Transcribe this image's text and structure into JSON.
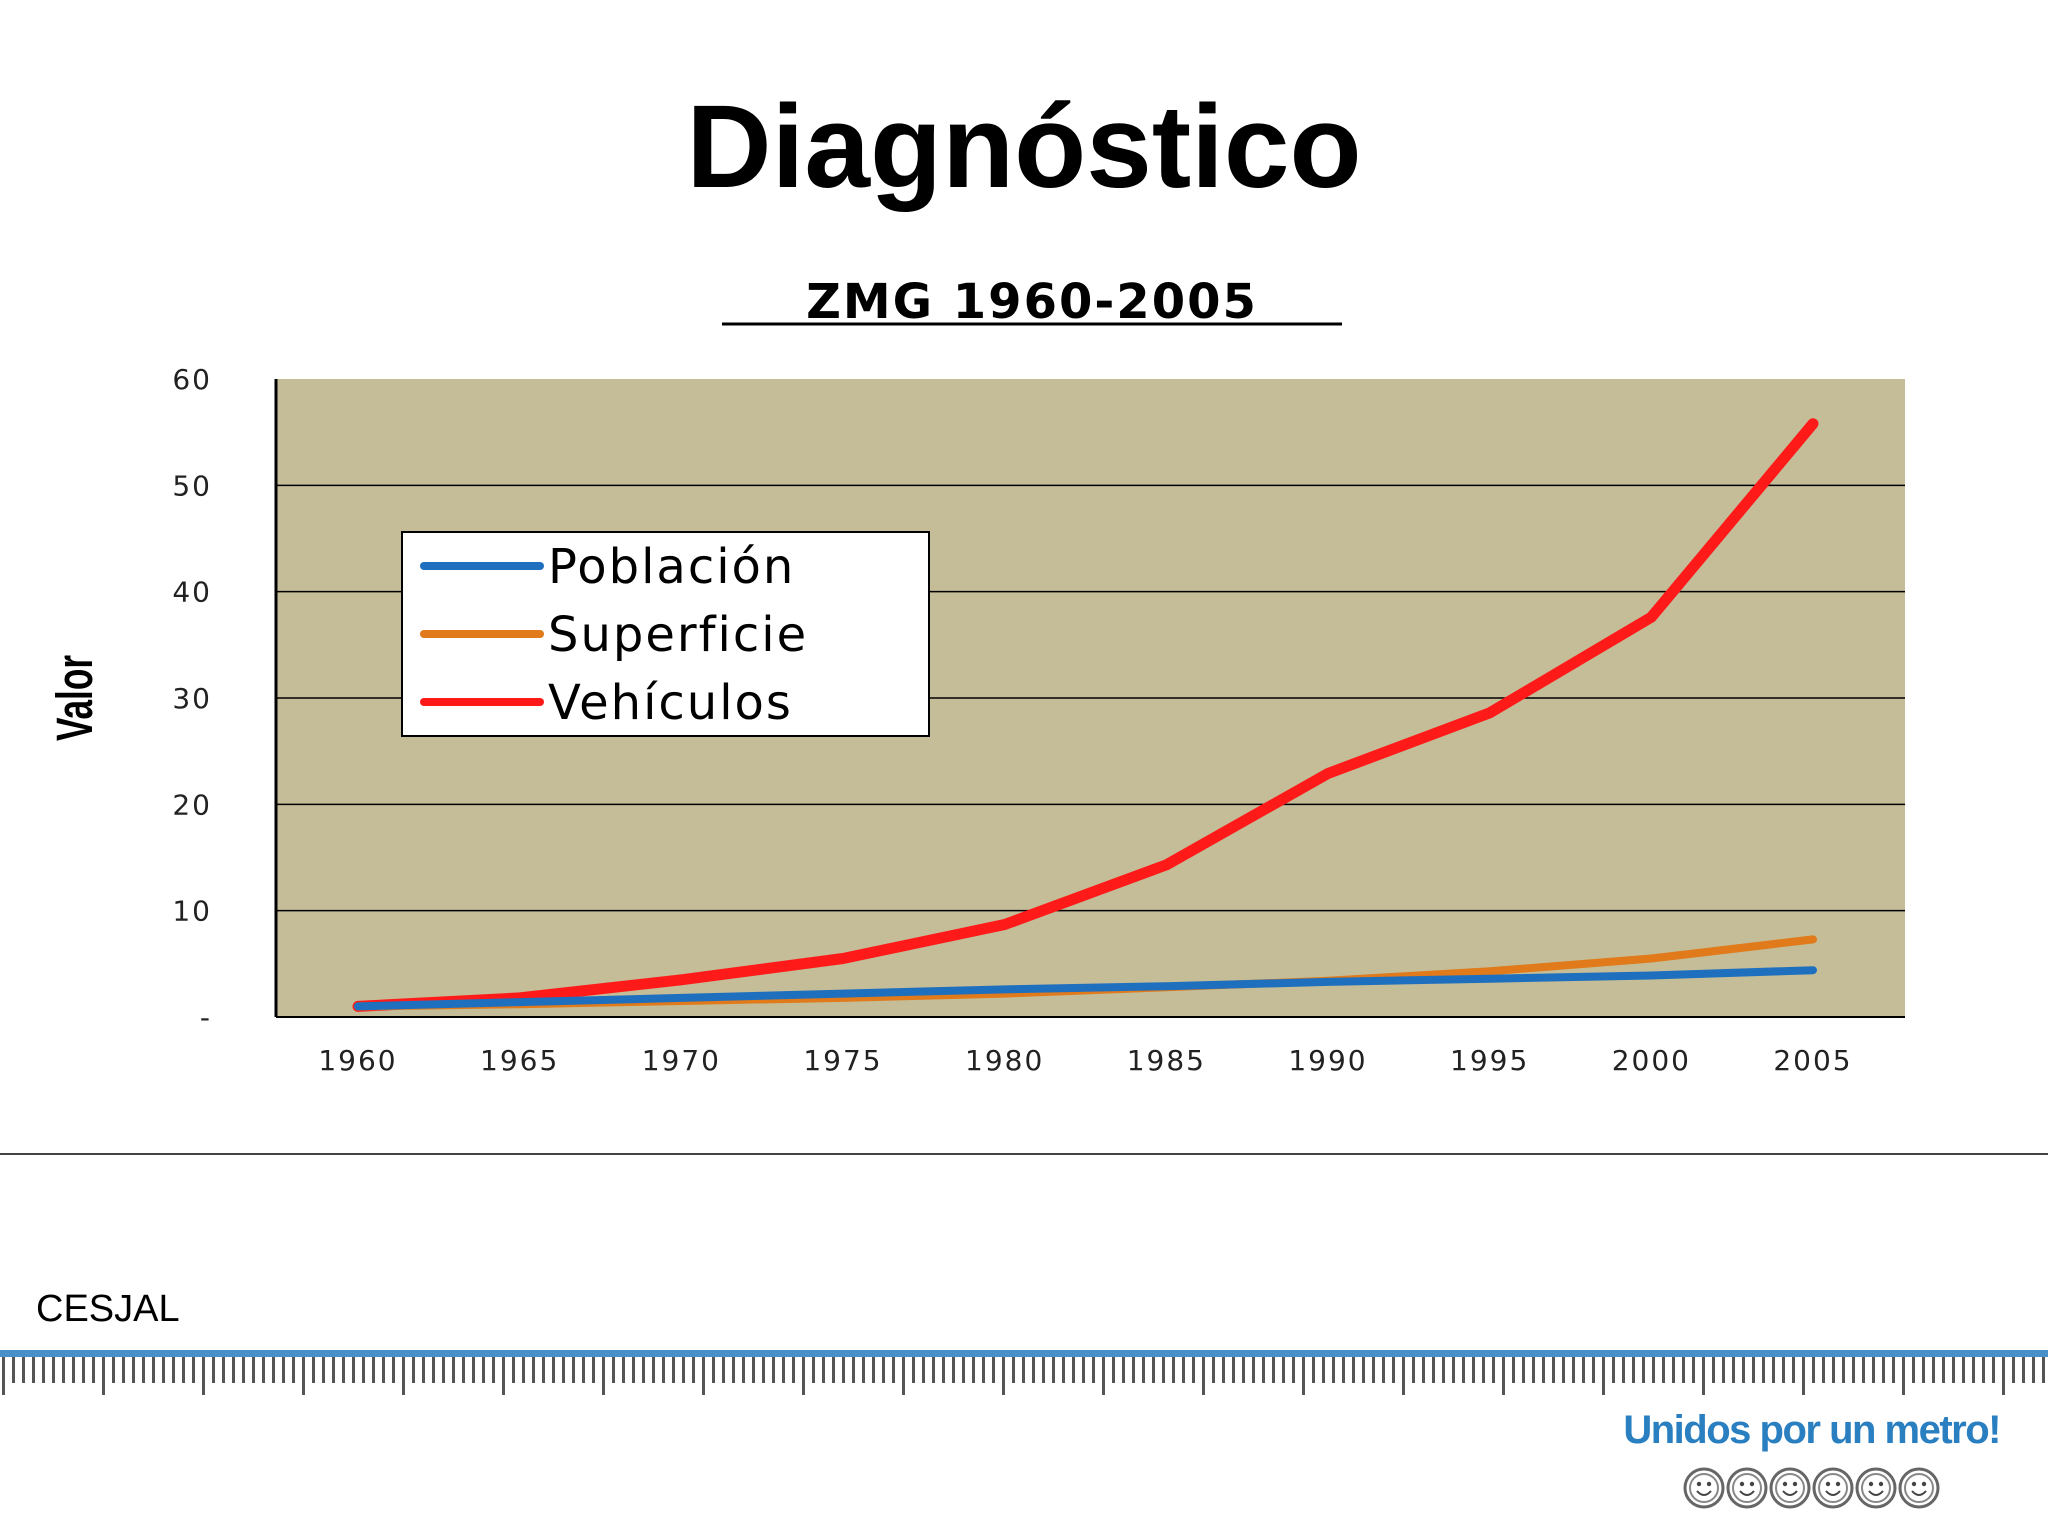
{
  "slide": {
    "title": "Diagnóstico",
    "footer_text": "CESJAL",
    "brand_text": "Unidos por un metro!",
    "brand_color": "#2a7fc0"
  },
  "chart_data": {
    "type": "line",
    "title": "ZMG 1960-2005",
    "ylabel": "Valor",
    "xlabel": "",
    "x": [
      1960,
      1965,
      1970,
      1975,
      1980,
      1985,
      1990,
      1995,
      2000,
      2005
    ],
    "x_tick_labels": [
      "1960",
      "1965",
      "1970",
      "1975",
      "1980",
      "1985",
      "1990",
      "1995",
      "2000",
      "2005"
    ],
    "y_tick_labels": [
      "-",
      "10",
      "20",
      "30",
      "40",
      "50",
      "60"
    ],
    "ylim": [
      0,
      60
    ],
    "grid": true,
    "plot_background": "#c4bd97",
    "legend_position": "top-left",
    "series": [
      {
        "name": "Población",
        "color": "#1f6fbf",
        "values": [
          1.0,
          1.4,
          1.8,
          2.2,
          2.6,
          2.9,
          3.3,
          3.6,
          3.9,
          4.4
        ]
      },
      {
        "name": "Superficie",
        "color": "#e07a1a",
        "values": [
          1.0,
          1.2,
          1.5,
          1.8,
          2.2,
          2.8,
          3.4,
          4.3,
          5.5,
          7.3
        ]
      },
      {
        "name": "Vehículos",
        "color": "#ff1a1a",
        "values": [
          1.0,
          1.8,
          3.5,
          5.5,
          8.7,
          14.3,
          22.9,
          28.6,
          37.6,
          55.8
        ]
      }
    ]
  }
}
